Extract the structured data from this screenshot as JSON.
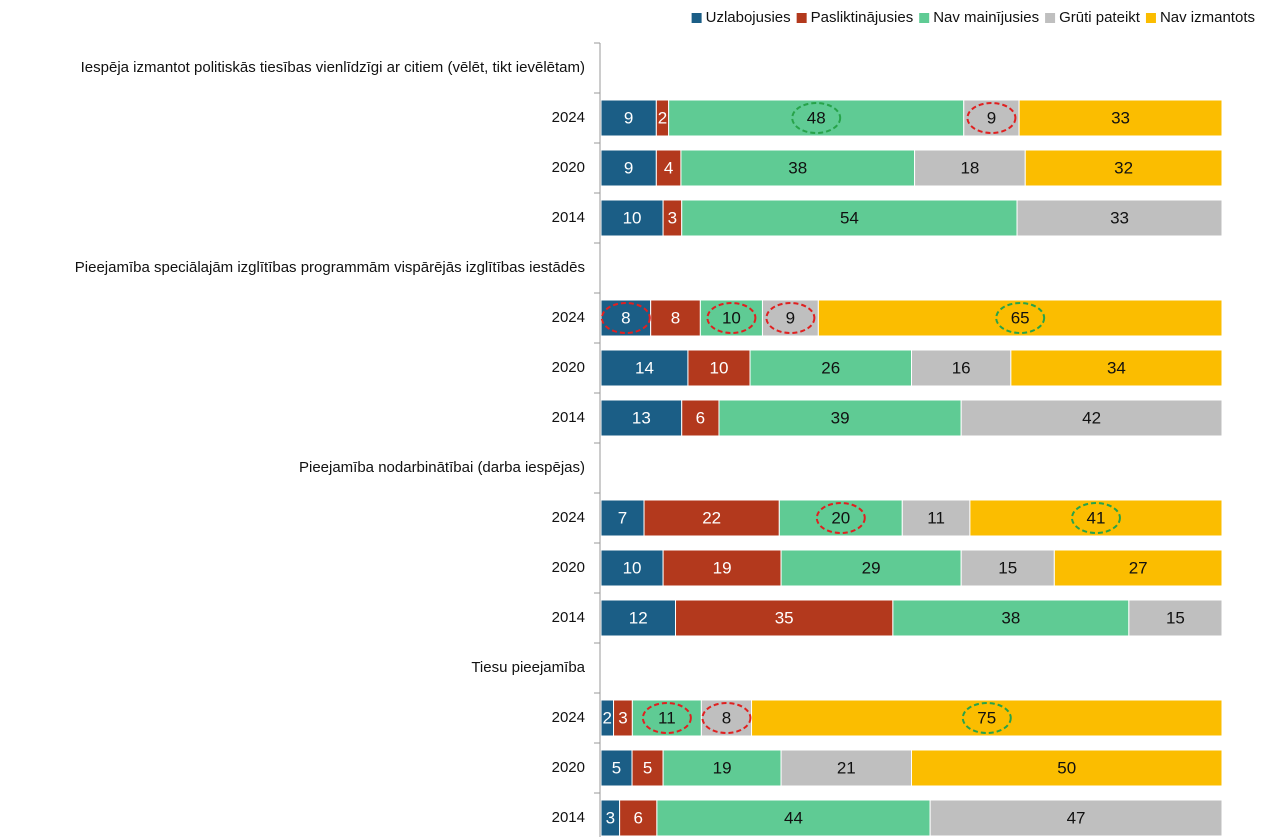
{
  "chart_data": {
    "type": "bar",
    "orientation": "horizontal",
    "stacked": "percent",
    "categories": [
      "Iespēja izmantot politiskās tiesības vienlīdzīgi ar citiem (vēlēt, tikt ievēlētam)",
      "2024",
      "2020",
      "2014",
      "Pieejamība speciālajām izglītības programmām vispārējās izglītības iestādēs",
      "2024",
      "2020",
      "2014",
      "Pieejamība nodarbinātībai (darba iespējas)",
      "2024",
      "2020",
      "2014",
      "Tiesu pieejamība",
      "2024",
      "2020",
      "2014"
    ],
    "series": [
      {
        "name": "Uzlabojusies",
        "color": "#1b5e86",
        "values": [
          null,
          9,
          9,
          10,
          null,
          8,
          14,
          13,
          null,
          7,
          10,
          12,
          null,
          2,
          5,
          3
        ]
      },
      {
        "name": "Pasliktinājusies",
        "color": "#b3391d",
        "values": [
          null,
          2,
          4,
          3,
          null,
          8,
          10,
          6,
          null,
          22,
          19,
          35,
          null,
          3,
          5,
          6
        ]
      },
      {
        "name": "Nav mainījusies",
        "color": "#5fcb94",
        "values": [
          null,
          48,
          38,
          54,
          null,
          10,
          26,
          39,
          null,
          20,
          29,
          38,
          null,
          11,
          19,
          44
        ]
      },
      {
        "name": "Grūti pateikt",
        "color": "#bfbfbf",
        "values": [
          null,
          9,
          18,
          33,
          null,
          9,
          16,
          42,
          null,
          11,
          15,
          15,
          null,
          8,
          21,
          47
        ]
      },
      {
        "name": "Nav izmantots",
        "color": "#fbbd00",
        "values": [
          null,
          33,
          32,
          null,
          null,
          65,
          34,
          null,
          null,
          41,
          27,
          null,
          null,
          75,
          50,
          null
        ]
      }
    ],
    "legend": "top-right"
  }
}
